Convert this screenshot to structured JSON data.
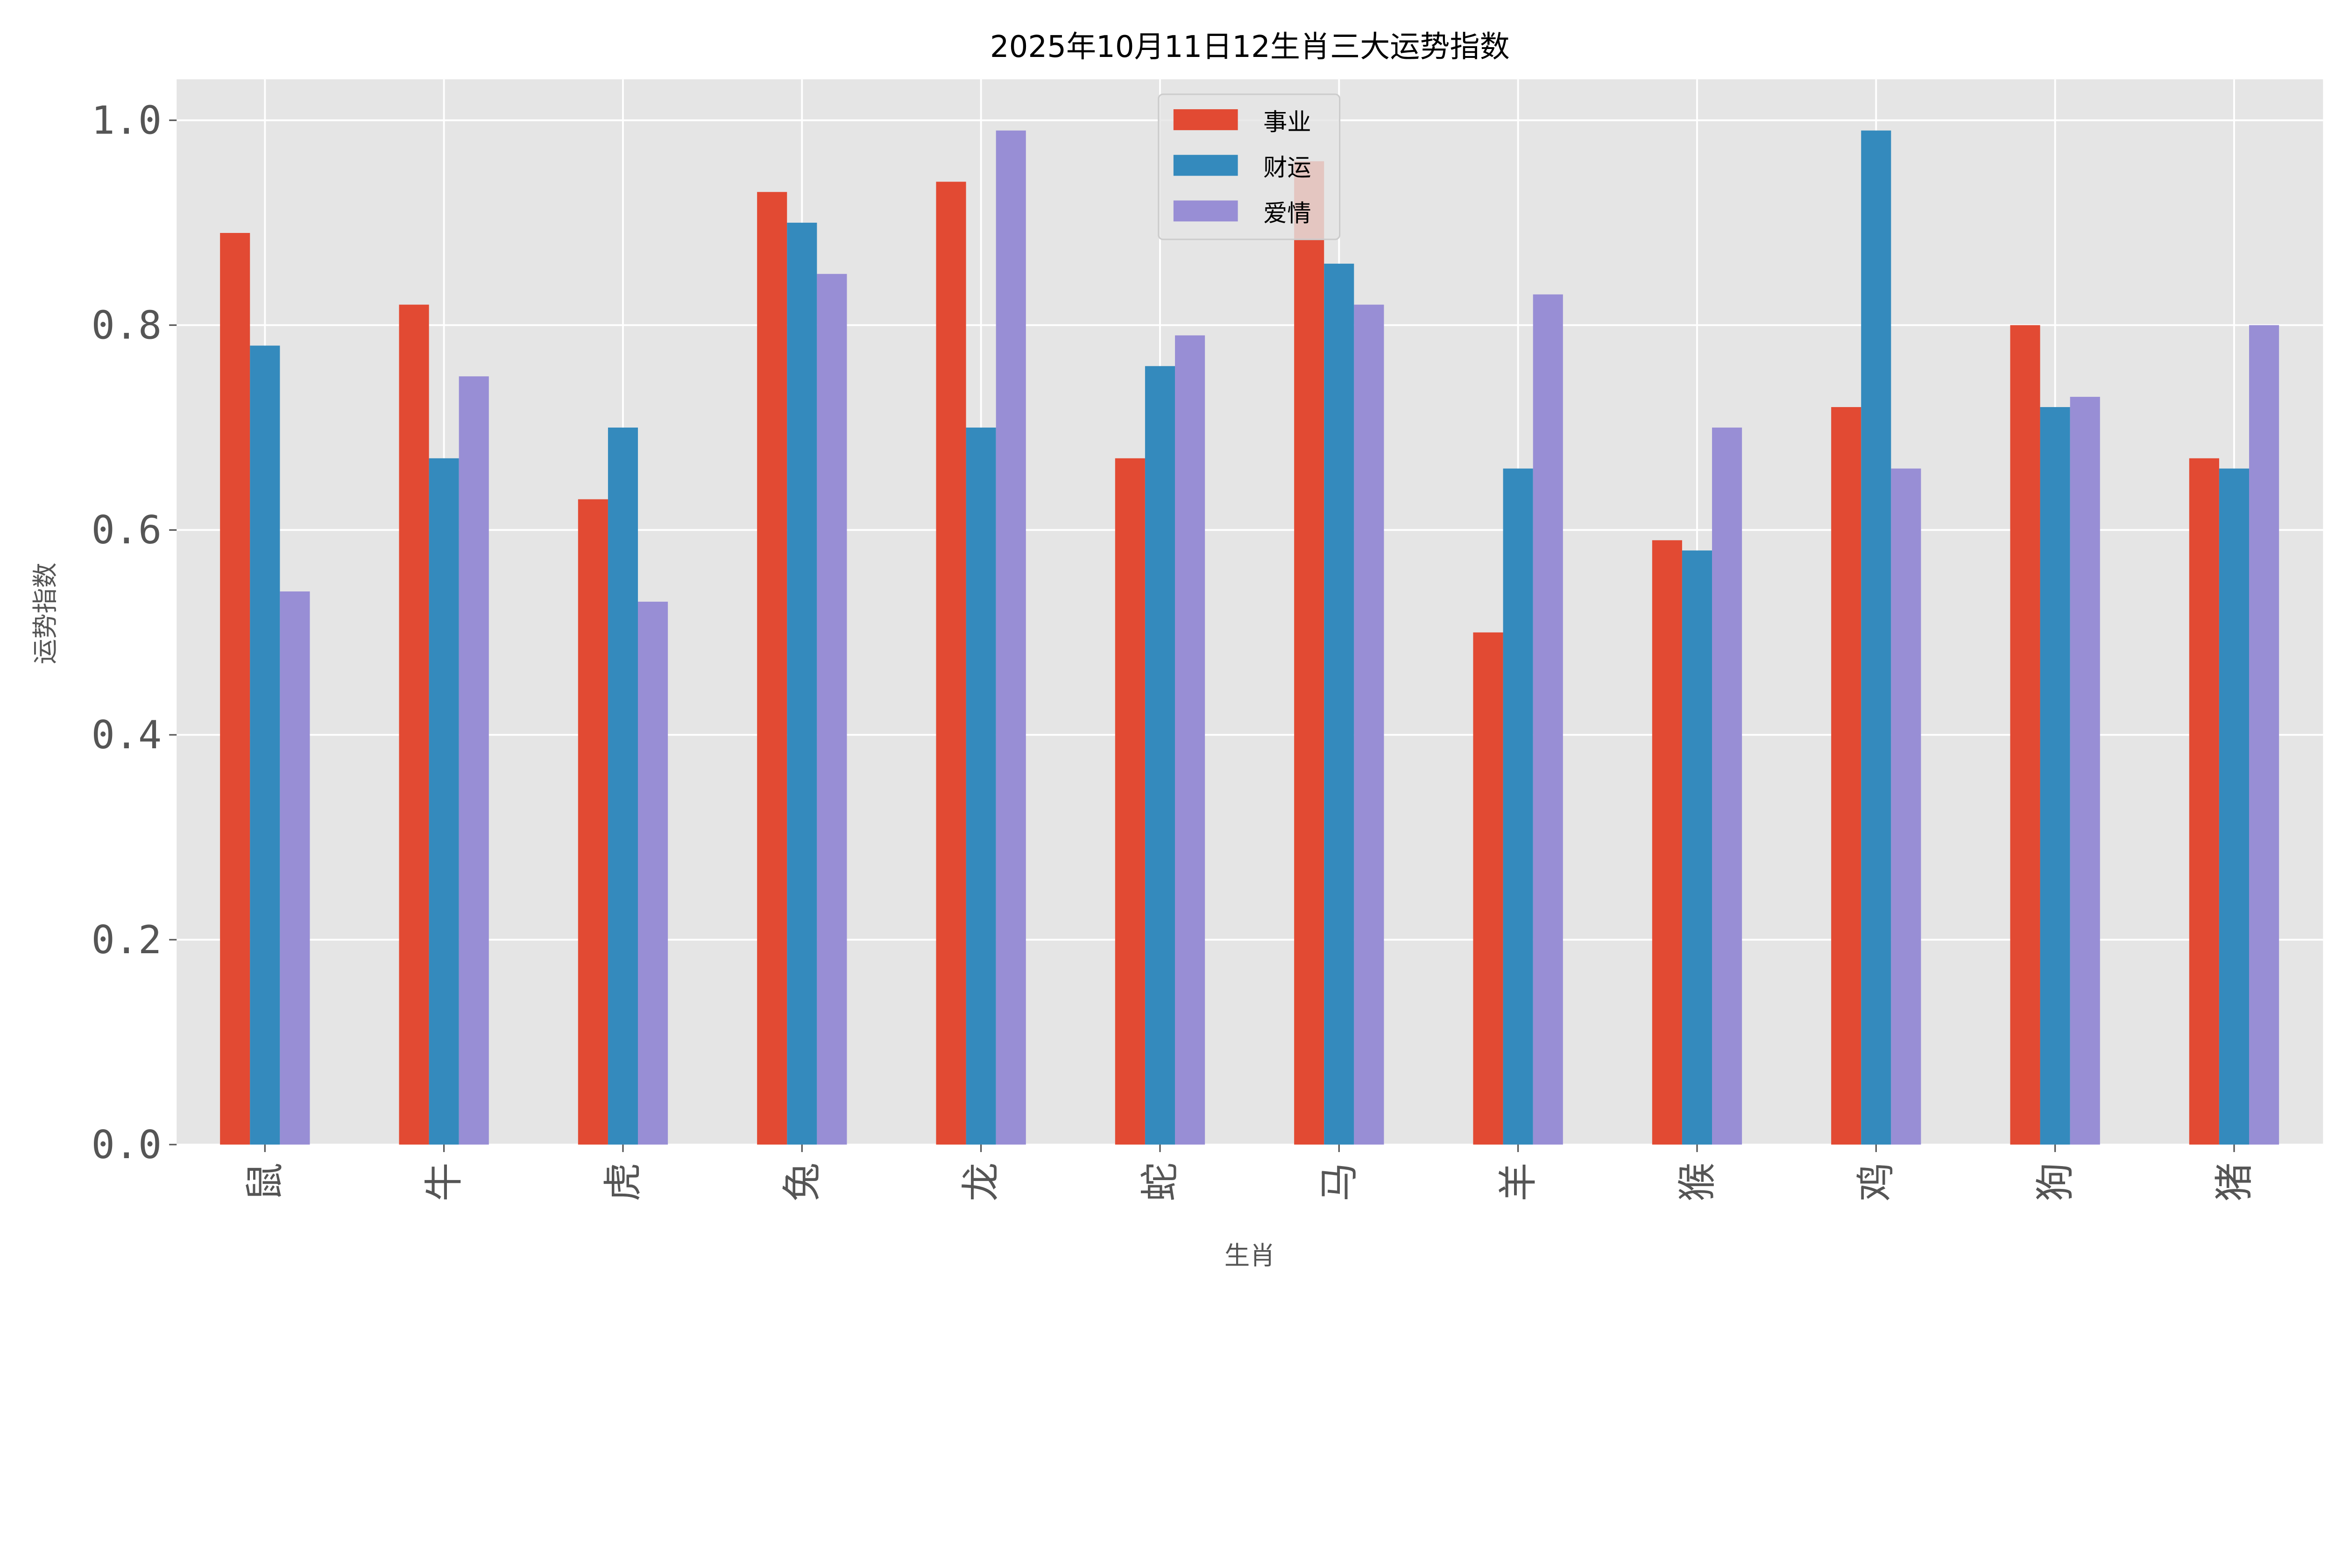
{
  "chart_data": {
    "type": "bar",
    "title": "2025年10月11日12生肖三大运势指数",
    "xlabel": "生肖",
    "ylabel": "运势指数",
    "categories": [
      "鼠",
      "牛",
      "虎",
      "兔",
      "龙",
      "蛇",
      "马",
      "羊",
      "猴",
      "鸡",
      "狗",
      "猪"
    ],
    "series": [
      {
        "name": "事业",
        "color": "#E24A33",
        "values": [
          0.89,
          0.82,
          0.63,
          0.93,
          0.94,
          0.67,
          0.96,
          0.5,
          0.59,
          0.72,
          0.8,
          0.67
        ]
      },
      {
        "name": "财运",
        "color": "#348ABD",
        "values": [
          0.78,
          0.67,
          0.7,
          0.9,
          0.7,
          0.76,
          0.86,
          0.66,
          0.58,
          0.99,
          0.72,
          0.66
        ]
      },
      {
        "name": "爱情",
        "color": "#988ED5",
        "values": [
          0.54,
          0.75,
          0.53,
          0.85,
          0.99,
          0.79,
          0.82,
          0.83,
          0.7,
          0.66,
          0.73,
          0.8
        ]
      }
    ],
    "yticks": [
      "0.0",
      "0.2",
      "0.4",
      "0.6",
      "0.8",
      "1.0"
    ],
    "ylim": [
      0,
      1.04
    ],
    "grid": true,
    "legend_position": "top-center",
    "background": "#E5E5E5"
  }
}
